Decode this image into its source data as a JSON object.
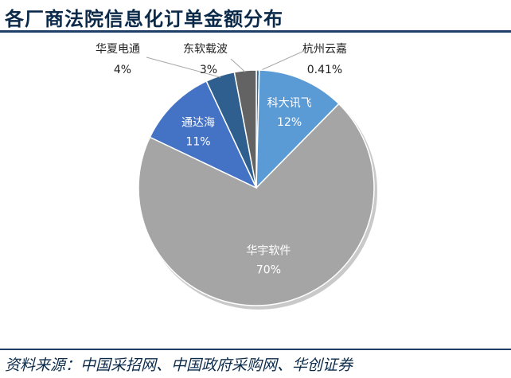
{
  "title": "各厂商法院信息化订单金额分布",
  "source": "资料来源：中国采招网、中国政府采购网、华创证券",
  "chart_data": {
    "type": "pie",
    "title": "各厂商法院信息化订单金额分布",
    "start_angle_deg": 0,
    "direction": "clockwise",
    "slices": [
      {
        "name": "杭州云嘉",
        "value": 0.41,
        "label": "0.41%",
        "color": "#2e6ea6",
        "label_mode": "outside"
      },
      {
        "name": "科大讯飞",
        "value": 12,
        "label": "12%",
        "color": "#5b9bd5",
        "label_mode": "inside"
      },
      {
        "name": "华宇软件",
        "value": 70,
        "label": "70%",
        "color": "#a5a5a5",
        "label_mode": "inside"
      },
      {
        "name": "通达海",
        "value": 11,
        "label": "11%",
        "color": "#4472c4",
        "label_mode": "inside"
      },
      {
        "name": "华夏电通",
        "value": 4,
        "label": "4%",
        "color": "#2f5f8f",
        "label_mode": "outside"
      },
      {
        "name": "东软载波",
        "value": 3,
        "label": "3%",
        "color": "#636363",
        "label_mode": "outside"
      }
    ]
  }
}
